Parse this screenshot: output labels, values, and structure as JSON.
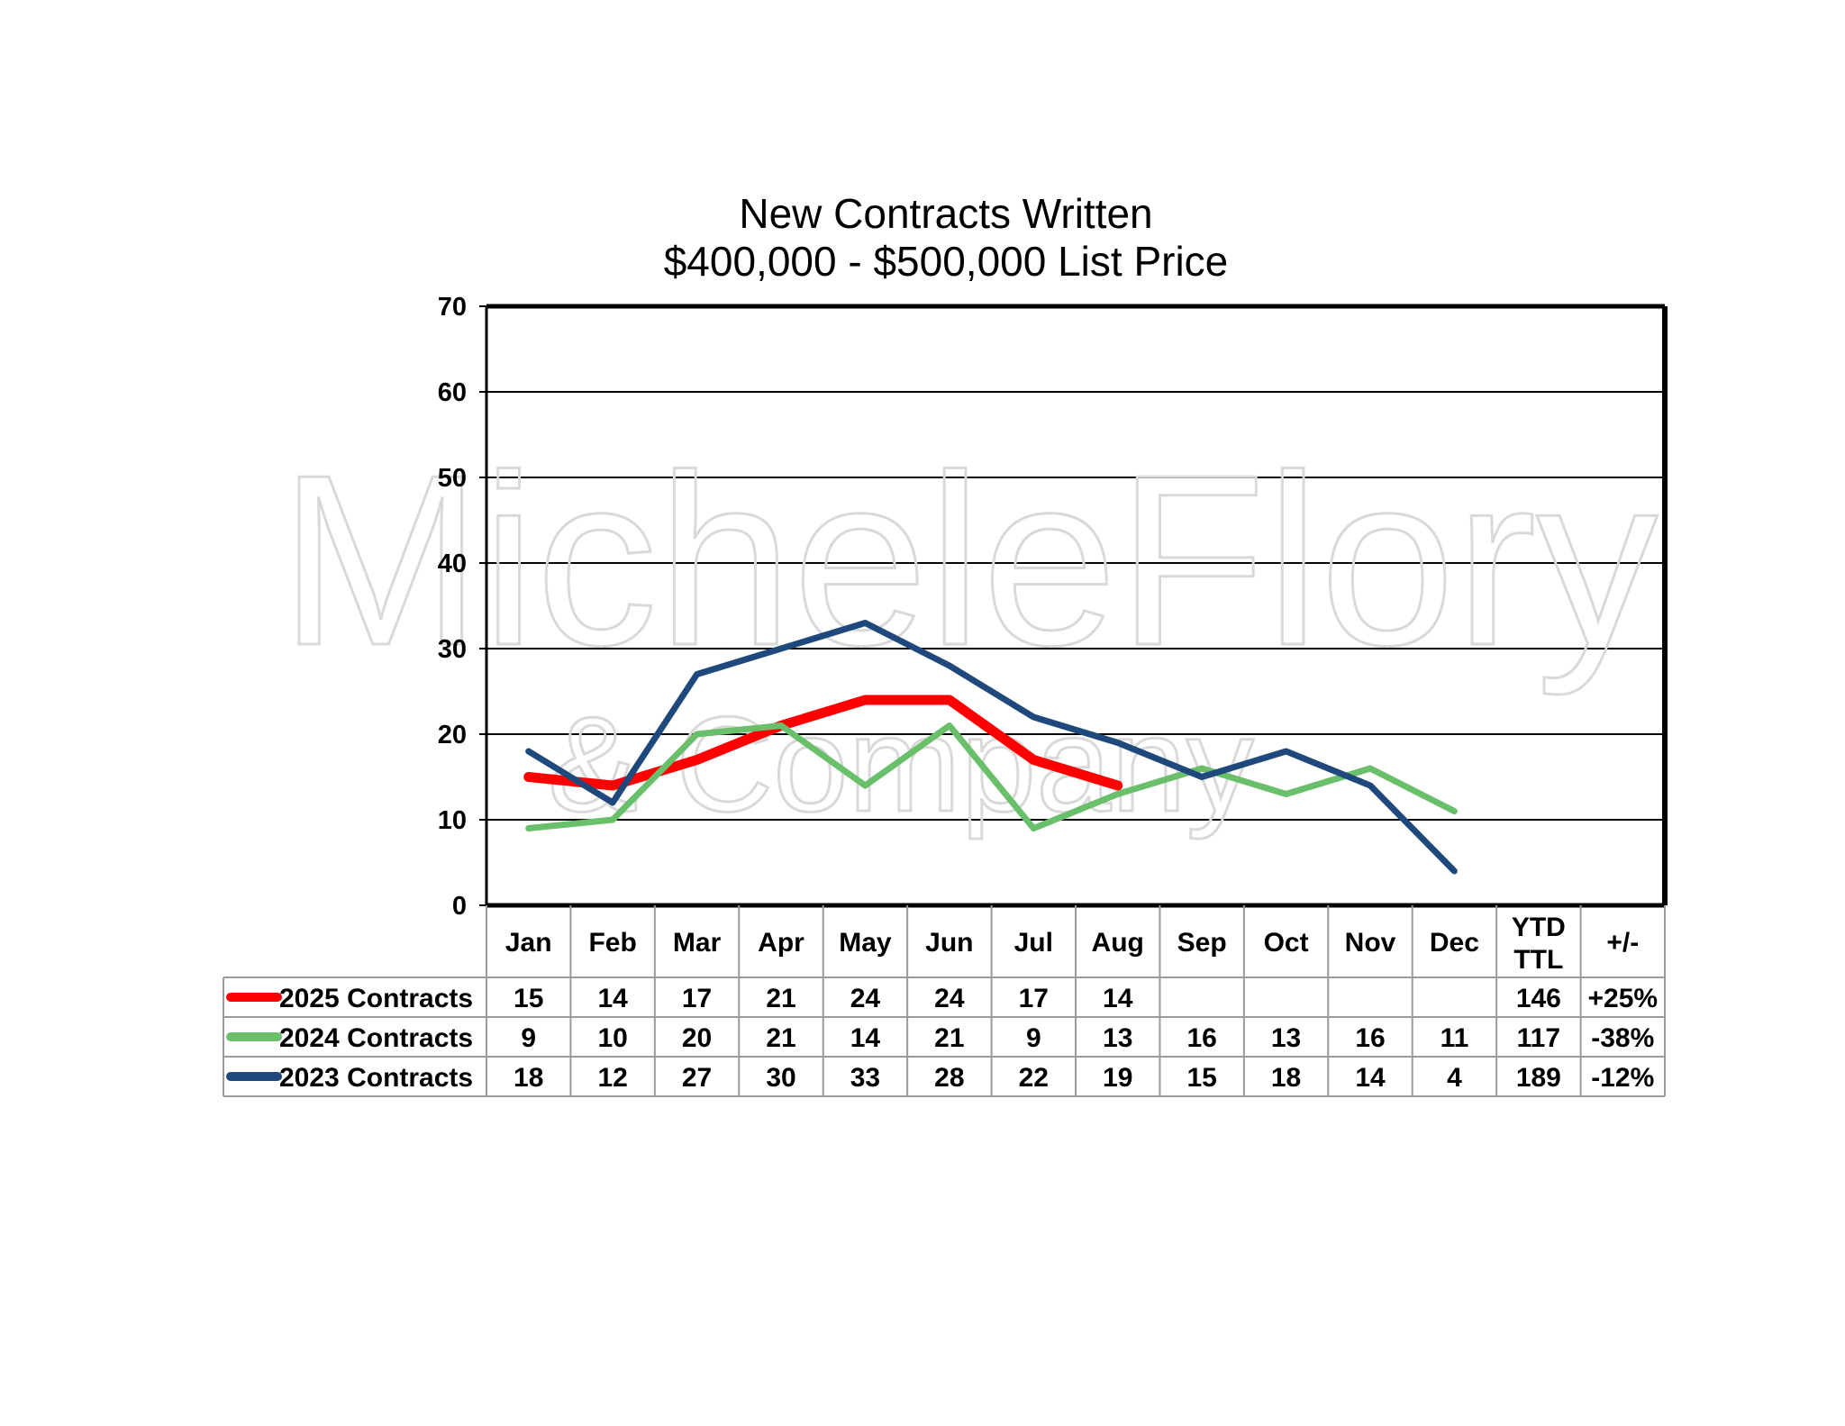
{
  "chart_data": {
    "type": "line",
    "title": "New Contracts Written",
    "subtitle": "$400,000 - $500,000 List Price",
    "watermark": "MicheleFlory & Company",
    "categories": [
      "Jan",
      "Feb",
      "Mar",
      "Apr",
      "May",
      "Jun",
      "Jul",
      "Aug",
      "Sep",
      "Oct",
      "Nov",
      "Dec"
    ],
    "ylim": [
      0,
      70
    ],
    "yticks": [
      0,
      10,
      20,
      30,
      40,
      50,
      60,
      70
    ],
    "grid": true,
    "series": [
      {
        "name": "2025 Contracts",
        "color": "#ff0000",
        "values": [
          15,
          14,
          17,
          21,
          24,
          24,
          17,
          14,
          null,
          null,
          null,
          null
        ],
        "ytd_ttl": "146",
        "change": "+25%"
      },
      {
        "name": "2024 Contracts",
        "color": "#6abf6a",
        "values": [
          9,
          10,
          20,
          21,
          14,
          21,
          9,
          13,
          16,
          13,
          16,
          11
        ],
        "ytd_ttl": "117",
        "change": "-38%"
      },
      {
        "name": "2023 Contracts",
        "color": "#1f497d",
        "values": [
          18,
          12,
          27,
          30,
          33,
          28,
          22,
          19,
          15,
          18,
          14,
          4
        ],
        "ytd_ttl": "189",
        "change": "-12%"
      }
    ],
    "table_headers": {
      "ytd": [
        "YTD",
        "TTL"
      ],
      "change": "+/-"
    }
  }
}
